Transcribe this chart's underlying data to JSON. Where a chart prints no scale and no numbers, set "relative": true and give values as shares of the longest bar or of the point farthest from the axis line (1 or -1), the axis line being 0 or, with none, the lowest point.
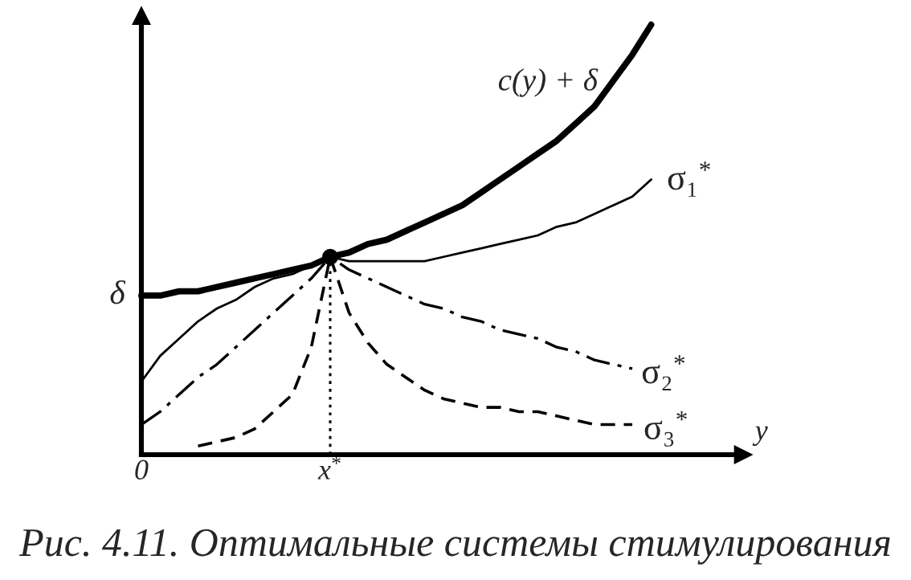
{
  "chart_data": {
    "type": "line",
    "relative": true,
    "xlabel": "y",
    "categories": [
      "0",
      null,
      null,
      null,
      null,
      null,
      null,
      null,
      null,
      null,
      "x$^{*}$",
      null,
      null,
      null,
      null,
      null,
      null,
      null,
      null,
      null,
      null,
      null,
      null,
      null,
      null,
      null,
      null,
      null
    ],
    "annotations": [
      "δ",
      "Рис. 4.11. Оптимальные системы стимулирования"
    ],
    "series": [
      {
        "name": "c(y) + δ",
        "color": "#000000",
        "line_style": "solid",
        "values": [
          0.37,
          0.37,
          0.38,
          0.38,
          0.39,
          0.4,
          0.41,
          0.42,
          0.43,
          0.44,
          0.46,
          0.47,
          0.49,
          0.5,
          0.52,
          0.54,
          0.56,
          0.58,
          0.61,
          0.64,
          0.67,
          0.7,
          0.73,
          0.77,
          0.81,
          0.87,
          0.93,
          1.0
        ]
      },
      {
        "name": "σ₁$^{*}$",
        "color": "#000000",
        "line_style": "solid",
        "values": [
          0.17,
          0.23,
          0.27,
          0.31,
          0.34,
          0.36,
          0.39,
          0.41,
          0.42,
          0.44,
          0.46,
          0.45,
          0.45,
          0.45,
          0.45,
          0.45,
          0.46,
          0.47,
          0.48,
          0.49,
          0.5,
          0.51,
          0.53,
          0.54,
          0.56,
          0.58,
          0.6,
          0.64
        ]
      },
      {
        "name": "σ₂$^{*}$",
        "color": "#000000",
        "line_style": "dashdot",
        "values": [
          0.07,
          0.1,
          0.14,
          0.18,
          0.21,
          0.25,
          0.29,
          0.33,
          0.37,
          0.41,
          0.46,
          0.43,
          0.41,
          0.39,
          0.37,
          0.35,
          0.34,
          0.32,
          0.31,
          0.29,
          0.28,
          0.27,
          0.25,
          0.24,
          0.22,
          0.21,
          0.2,
          null
        ]
      },
      {
        "name": "σ₃$^{*}$",
        "color": "#000000",
        "line_style": "dashed",
        "values": [
          null,
          null,
          null,
          0.02,
          0.03,
          0.04,
          0.06,
          0.1,
          0.14,
          0.25,
          0.46,
          0.33,
          0.26,
          0.21,
          0.18,
          0.15,
          0.13,
          0.12,
          0.11,
          0.11,
          0.1,
          0.1,
          0.09,
          0.08,
          0.07,
          0.07,
          0.07,
          null
        ]
      },
      {
        "type": "lollipop",
        "color": "#000000",
        "line_style": "dotted",
        "marker": "circle",
        "values": [
          null,
          null,
          null,
          null,
          null,
          null,
          null,
          null,
          null,
          null,
          0.46,
          null,
          null,
          null,
          null,
          null,
          null,
          null,
          null,
          null,
          null,
          null,
          null,
          null,
          null,
          null,
          null,
          null
        ]
      }
    ]
  }
}
